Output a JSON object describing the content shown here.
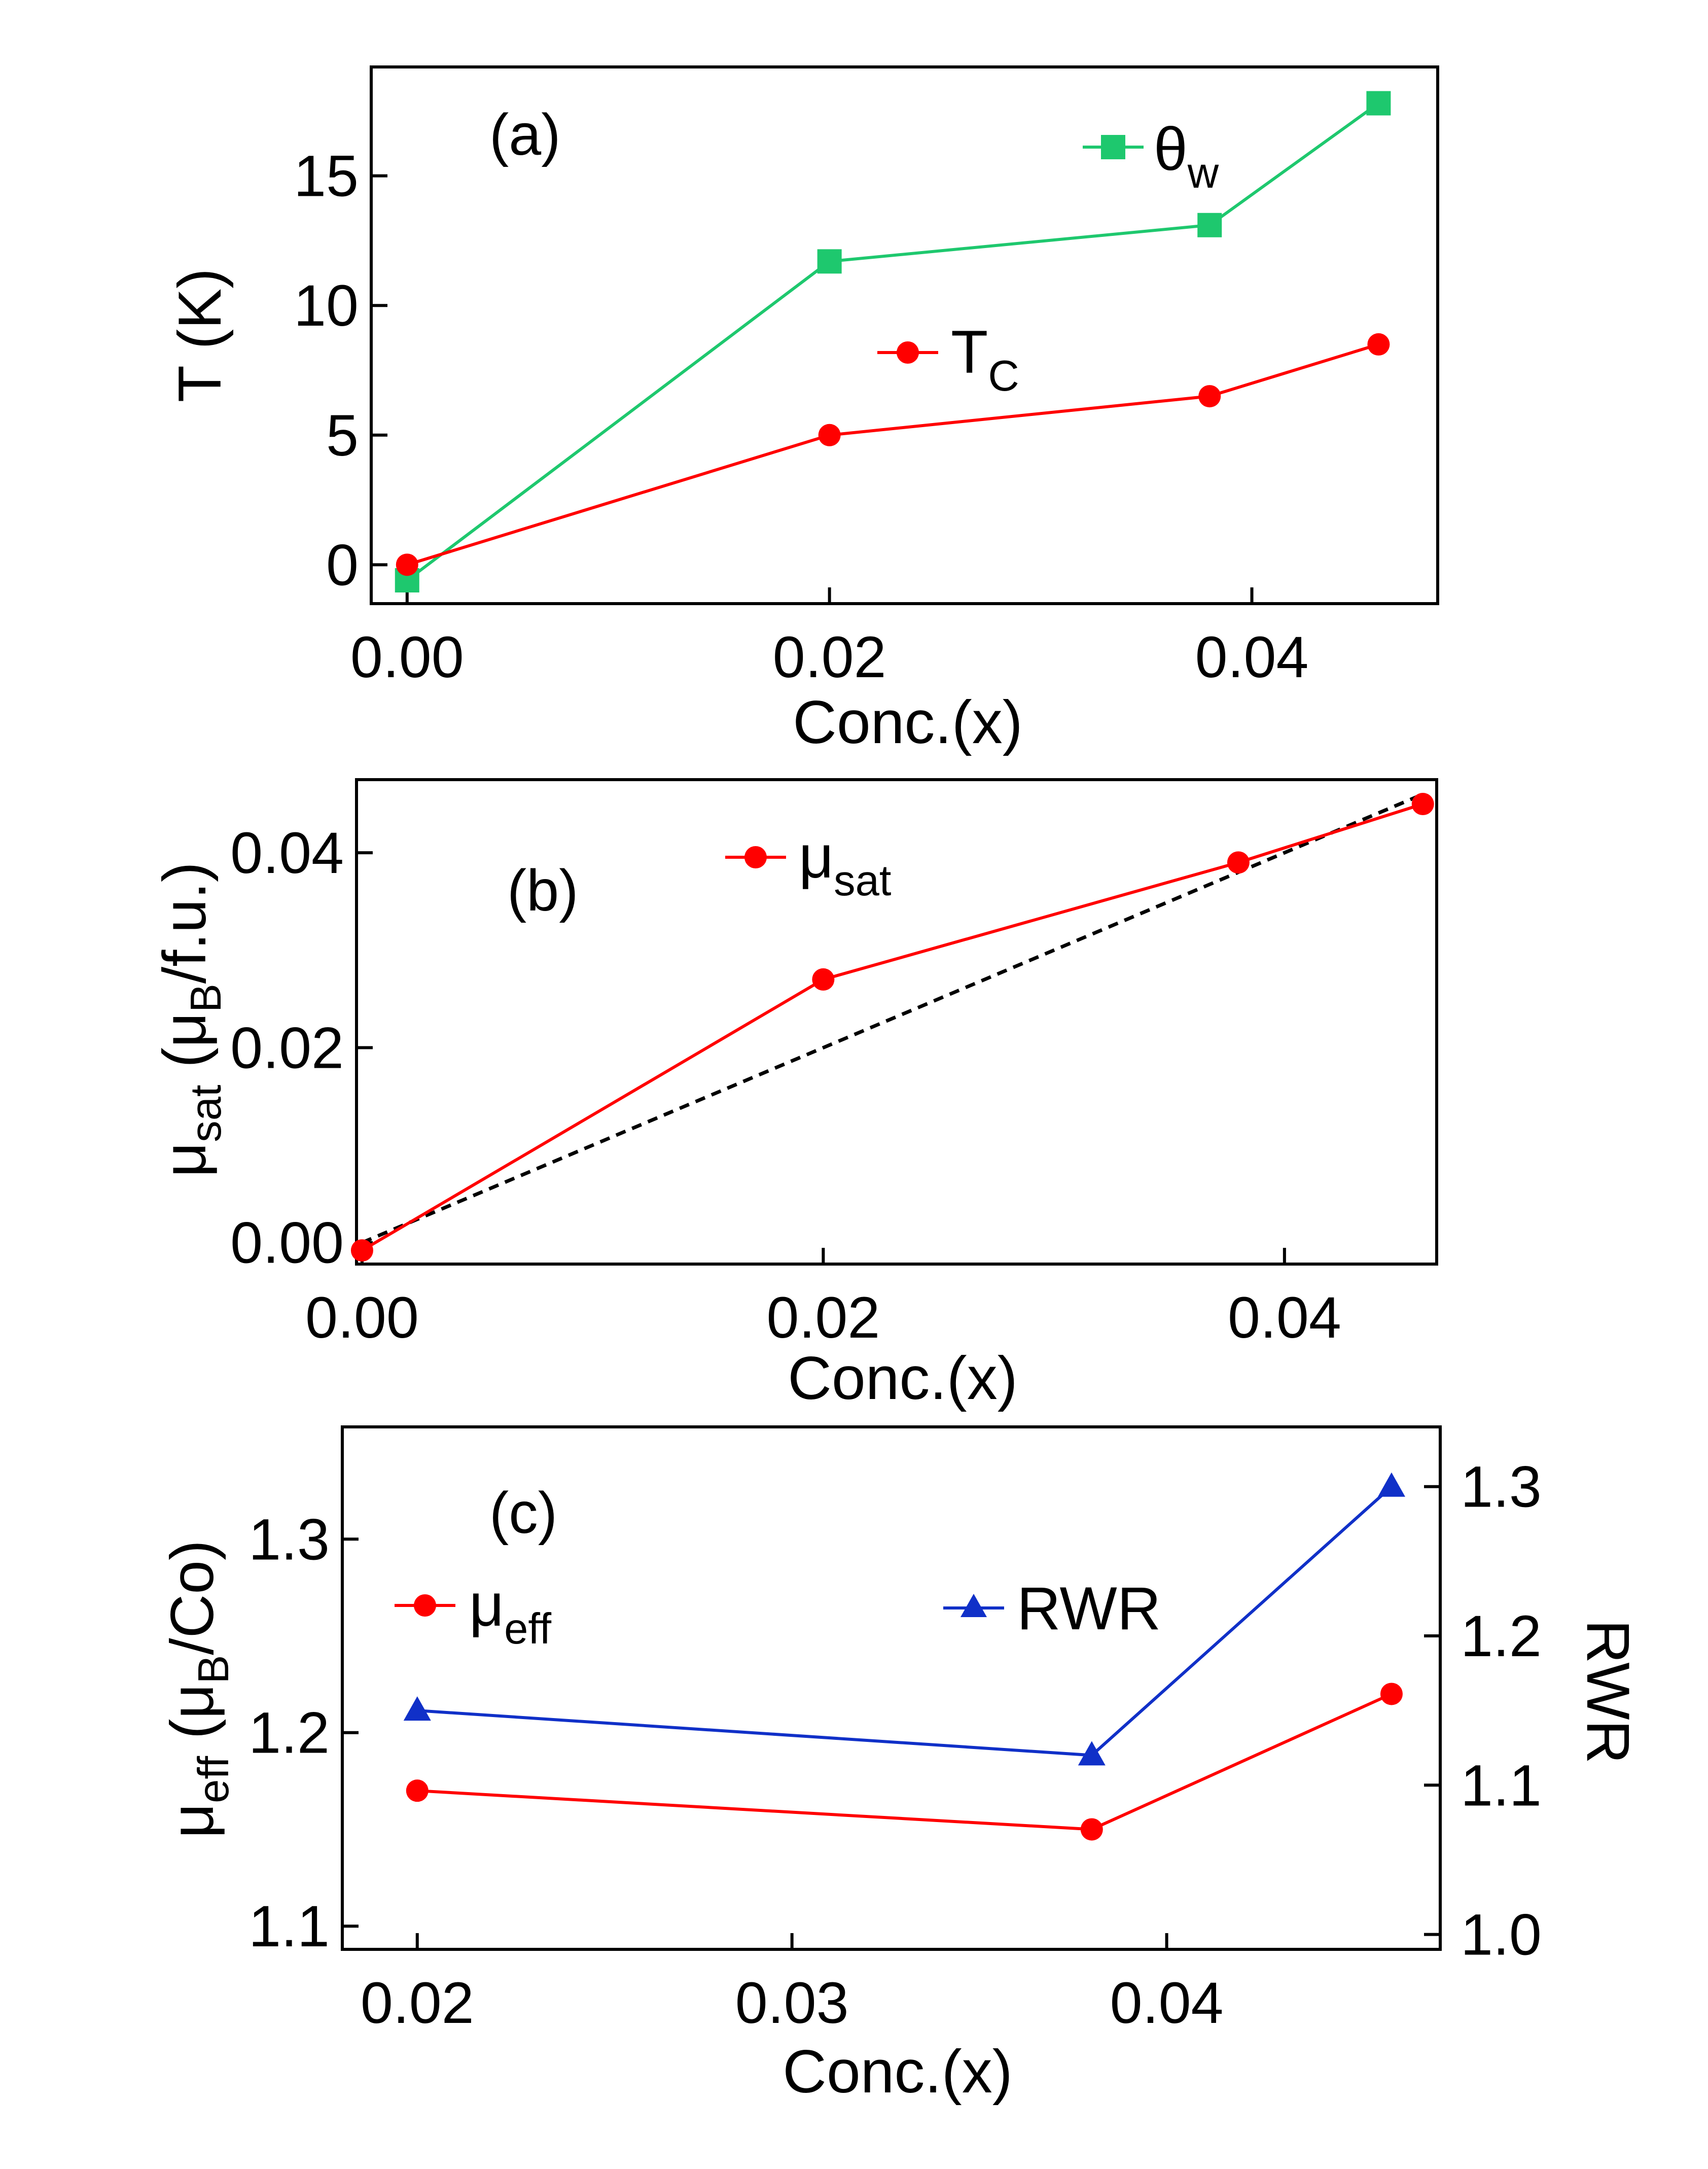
{
  "colors": {
    "red": "#ff0000",
    "green": "#1ec86e",
    "blue": "#1030c8",
    "dashed": "#000000"
  },
  "chart_data": [
    {
      "type": "line",
      "panel_label": "(a)",
      "xlabel": "Conc.(x)",
      "ylabel": "T (K)",
      "xlim": [
        -0.0017,
        0.0488
      ],
      "ylim": [
        -1.5,
        19.2
      ],
      "xticks": [
        0.0,
        0.02,
        0.04
      ],
      "xtick_labels": [
        "0.00",
        "0.02",
        "0.04"
      ],
      "yticks": [
        0,
        5,
        10,
        15
      ],
      "ytick_labels": [
        "0",
        "5",
        "10",
        "15"
      ],
      "grid": false,
      "legend_position": "inline",
      "series": [
        {
          "name": "θ",
          "name_sub": "w",
          "color": "#1ec86e",
          "marker": "square",
          "x": [
            0.0,
            0.02,
            0.038,
            0.046
          ],
          "y": [
            -0.6,
            11.7,
            13.1,
            17.8
          ]
        },
        {
          "name": "T",
          "name_sub": "C",
          "color": "#ff0000",
          "marker": "circle",
          "x": [
            0.0,
            0.02,
            0.038,
            0.046
          ],
          "y": [
            0.0,
            5.0,
            6.5,
            8.5
          ]
        }
      ]
    },
    {
      "type": "line",
      "panel_label": "(b)",
      "xlabel": "Conc.(x)",
      "ylabel": "μ",
      "ylabel_sub": "sat",
      "ylabel_mid": " (μ",
      "ylabel_sub2": "B",
      "ylabel_end": "/f.u.)",
      "xlim": [
        -0.00024,
        0.0466
      ],
      "ylim": [
        -0.0022,
        0.0475
      ],
      "xticks": [
        0.0,
        0.02,
        0.04
      ],
      "xtick_labels": [
        "0.00",
        "0.02",
        "0.04"
      ],
      "yticks": [
        0.0,
        0.02,
        0.04
      ],
      "ytick_labels": [
        "0.00",
        "0.02",
        "0.04"
      ],
      "grid": false,
      "legend_position": "top-center",
      "series": [
        {
          "name": "μ",
          "name_sub": "sat",
          "color": "#ff0000",
          "marker": "circle",
          "x": [
            0.0,
            0.02,
            0.038,
            0.046
          ],
          "y": [
            -0.0008,
            0.027,
            0.039,
            0.045
          ]
        }
      ],
      "reference_line": {
        "style": "dashed",
        "x": [
          0.0,
          0.046
        ],
        "y": [
          0.0,
          0.046
        ]
      }
    },
    {
      "type": "line",
      "panel_label": "(c)",
      "xlabel": "Conc.(x)",
      "ylabel": "μ",
      "ylabel_sub": "eff",
      "ylabel_mid": " (μ",
      "ylabel_sub2": "B",
      "ylabel_end": "/Co)",
      "y2label": "RWR",
      "xlim": [
        0.018,
        0.0473
      ],
      "ylim": [
        1.088,
        1.358
      ],
      "y2lim": [
        0.99,
        1.34
      ],
      "xticks": [
        0.02,
        0.03,
        0.04
      ],
      "xtick_labels": [
        "0.02",
        "0.03",
        "0.04"
      ],
      "yticks": [
        1.1,
        1.2,
        1.3
      ],
      "ytick_labels": [
        "1.1",
        "1.2",
        "1.3"
      ],
      "y2ticks": [
        1.0,
        1.1,
        1.2,
        1.3
      ],
      "y2tick_labels": [
        "1.0",
        "1.1",
        "1.2",
        "1.3"
      ],
      "grid": false,
      "legend_position": "top",
      "series": [
        {
          "name": "μ",
          "name_sub": "eff",
          "color": "#ff0000",
          "marker": "circle",
          "axis": "left",
          "x": [
            0.02,
            0.038,
            0.046
          ],
          "y": [
            1.17,
            1.15,
            1.22
          ]
        },
        {
          "name": "RWR",
          "color": "#1030c8",
          "marker": "triangle",
          "axis": "right",
          "x": [
            0.02,
            0.038,
            0.046
          ],
          "y": [
            1.15,
            1.12,
            1.3
          ]
        }
      ]
    }
  ]
}
